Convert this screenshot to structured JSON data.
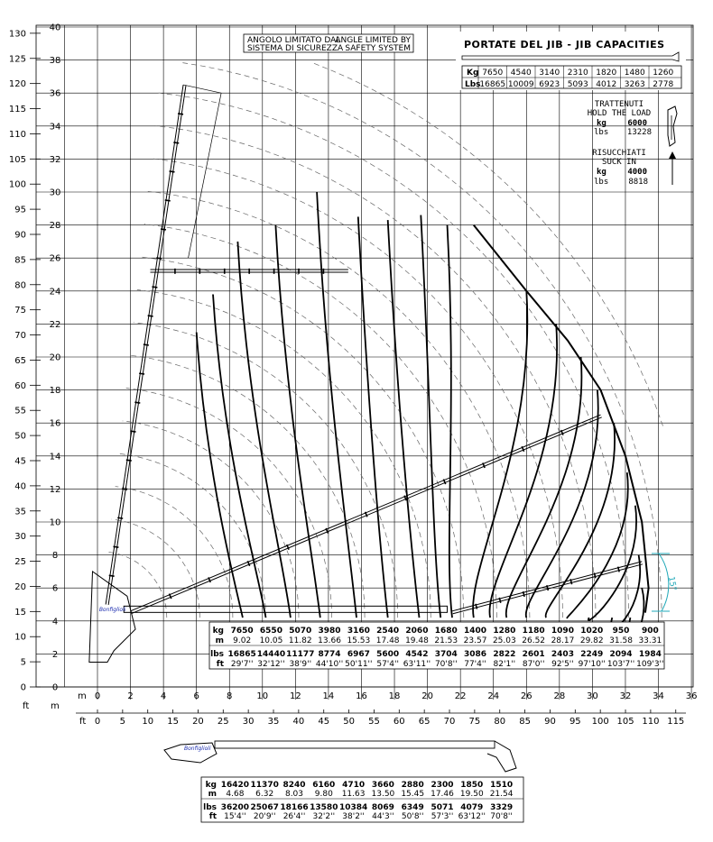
{
  "axes": {
    "ft_left_ticks": [
      "130",
      "125",
      "120",
      "115",
      "110",
      "105",
      "100",
      "95",
      "90",
      "85",
      "80",
      "75",
      "70",
      "65",
      "60",
      "55",
      "50",
      "45",
      "40",
      "35",
      "30",
      "25",
      "20",
      "15",
      "10",
      "5",
      "0"
    ],
    "m_left_ticks": [
      "40",
      "38",
      "36",
      "34",
      "32",
      "30",
      "28",
      "26",
      "24",
      "22",
      "20",
      "18",
      "16",
      "14",
      "12",
      "10",
      "8",
      "6",
      "4",
      "2",
      "0"
    ],
    "m_bottom_ticks": [
      "0",
      "2",
      "4",
      "6",
      "8",
      "10",
      "12",
      "14",
      "16",
      "18",
      "20",
      "22",
      "24",
      "26",
      "28",
      "30",
      "32",
      "34",
      "36"
    ],
    "ft_bottom_ticks": [
      "0",
      "5",
      "10",
      "15",
      "20",
      "25",
      "30",
      "35",
      "40",
      "45",
      "50",
      "55",
      "60",
      "65",
      "70",
      "75",
      "80",
      "85",
      "90",
      "95",
      "100",
      "105",
      "110",
      "115"
    ],
    "ft_unit": "ft",
    "m_unit": "m",
    "angle_label": "15°"
  },
  "safety_note": {
    "it_line1": "ANGOLO LIMITATO DAL",
    "it_line2": "SISTEMA DI SICUREZZA",
    "en_line1": "ANGLE LIMITED BY",
    "en_line2": "SAFETY SYSTEM"
  },
  "jib_capacities": {
    "title": "PORTATE DEL JIB  -  JIB CAPACITIES",
    "kg_label": "Kg",
    "lbs_label": "Lbs",
    "kg": [
      "7650",
      "4540",
      "3140",
      "2310",
      "1820",
      "1480",
      "1260"
    ],
    "lbs": [
      "16865",
      "10009",
      "6923",
      "5093",
      "4012",
      "3263",
      "2778"
    ]
  },
  "trattenuti": {
    "line1": "TRATTENUTI",
    "line2": "HOLD THE LOAD",
    "kg_label": "kg",
    "kg": "6000",
    "lbs_label": "lbs",
    "lbs": "13228"
  },
  "risucchiati": {
    "line1": "RISUCCHIATI",
    "line2": "SUCK IN",
    "kg_label": "kg",
    "kg": "4000",
    "lbs_label": "lbs",
    "lbs": "8818"
  },
  "main_table": {
    "row_labels": [
      "kg",
      "m",
      "lbs",
      "ft"
    ],
    "kg": [
      "7650",
      "6550",
      "5070",
      "3980",
      "3160",
      "2540",
      "2060",
      "1680",
      "1400",
      "1280",
      "1180",
      "1090",
      "1020",
      "950",
      "900"
    ],
    "m": [
      "9.02",
      "10.05",
      "11.82",
      "13.66",
      "15.53",
      "17.48",
      "19.48",
      "21.53",
      "23.57",
      "25.03",
      "26.52",
      "28.17",
      "29.82",
      "31.58",
      "33.31"
    ],
    "lbs": [
      "16865",
      "14440",
      "11177",
      "8774",
      "6967",
      "5600",
      "4542",
      "3704",
      "3086",
      "2822",
      "2601",
      "2403",
      "2249",
      "2094",
      "1984"
    ],
    "ft": [
      "29'7''",
      "32'12''",
      "38'9''",
      "44'10''",
      "50'11''",
      "57'4''",
      "63'11''",
      "70'8''",
      "77'4''",
      "82'1''",
      "87'0''",
      "92'5''",
      "97'10''",
      "103'7''",
      "109'3''"
    ]
  },
  "bottom_table": {
    "row_labels": [
      "kg",
      "m",
      "lbs",
      "ft"
    ],
    "kg": [
      "16420",
      "11370",
      "8240",
      "6160",
      "4710",
      "3660",
      "2880",
      "2300",
      "1850",
      "1510"
    ],
    "m": [
      "4.68",
      "6.32",
      "8.03",
      "9.80",
      "11.63",
      "13.50",
      "15.45",
      "17.46",
      "19.50",
      "21.54"
    ],
    "lbs": [
      "36200",
      "25067",
      "18166",
      "13580",
      "10384",
      "8069",
      "6349",
      "5071",
      "4079",
      "3329"
    ],
    "ft": [
      "15'4''",
      "20'9''",
      "26'4''",
      "32'2''",
      "38'2''",
      "44'3''",
      "50'8''",
      "57'3''",
      "63'12''",
      "70'8''"
    ]
  },
  "colors": {
    "crane_brand": "#1e2fb0",
    "angle_marker": "#1fa8b8"
  }
}
